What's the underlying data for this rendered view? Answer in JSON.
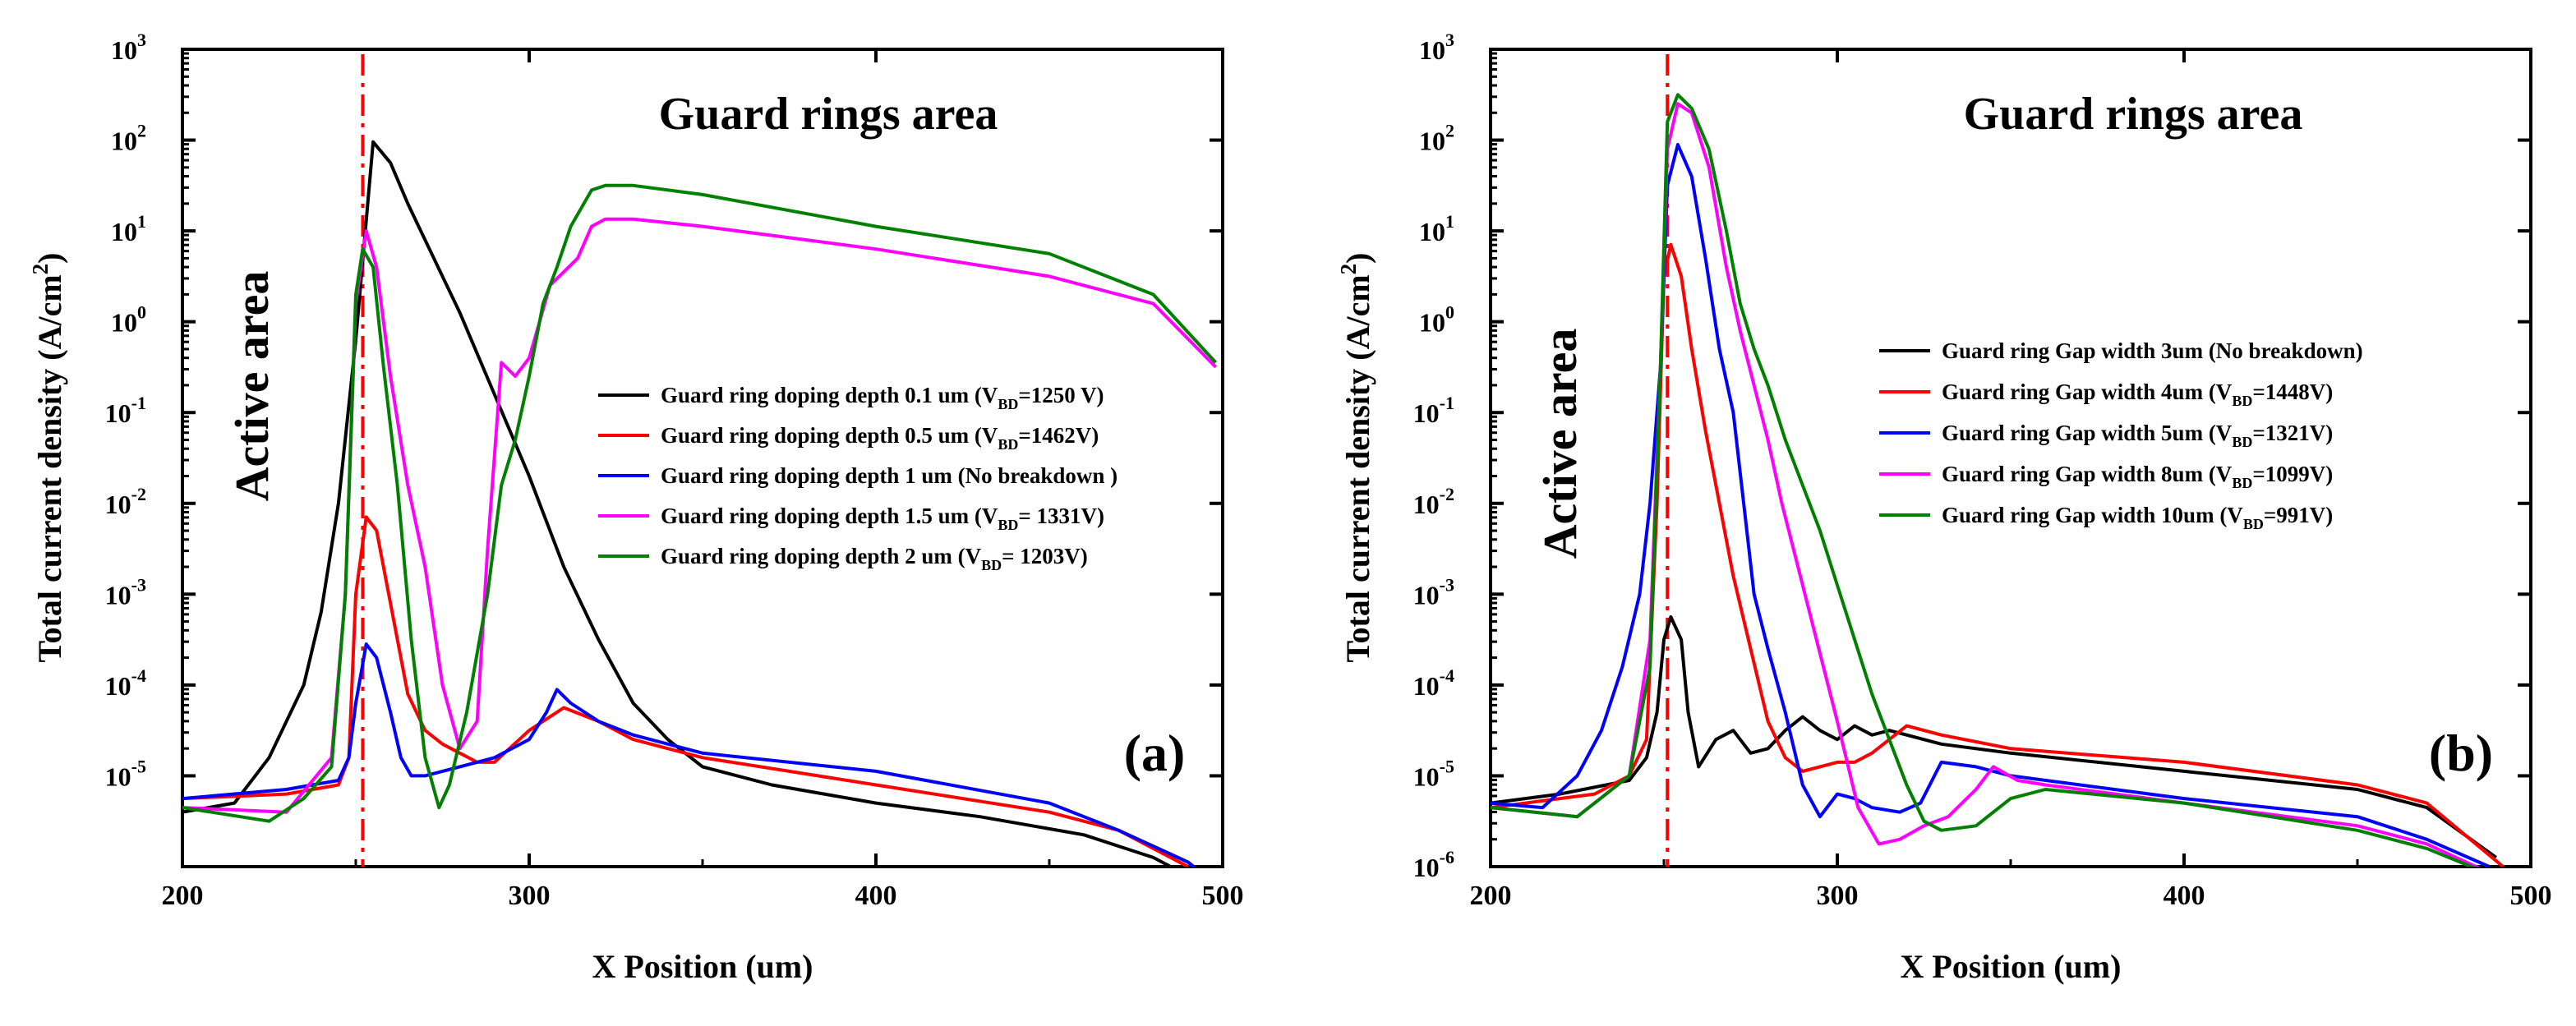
{
  "chart_data": [
    {
      "type": "line",
      "panel_label": "(a)",
      "title": "Guard rings area",
      "side_label": "Active area",
      "xlabel": "X Position (um)",
      "ylabel_main": "Total current density (A/cm",
      "ylabel_sup": "2",
      "ylabel_end": ")",
      "yscale": "log",
      "xlim": [
        200,
        500
      ],
      "ylim_log10": [
        -6,
        3
      ],
      "x_ticks": [
        200,
        300,
        400,
        500
      ],
      "y_tick_exponents": [
        -5,
        -4,
        -3,
        -2,
        -1,
        0,
        1,
        2,
        3
      ],
      "y_tick_base": "10",
      "x_ticks_text": [
        "200",
        "300",
        "400",
        "500"
      ],
      "y_ticks_text": [
        "-5",
        "-4",
        "-3",
        "-2",
        "-1",
        "0",
        "1",
        "2",
        "3"
      ],
      "marker_line_x": 252,
      "marker_line_color": "#ff0000",
      "series": [
        {
          "name": "Guard ring doping depth 0.1 um (V",
          "sub": "BD",
          "name_end": "=1250 V)",
          "color": "#000000",
          "x": [
            200,
            215,
            225,
            235,
            240,
            245,
            250,
            255,
            260,
            265,
            270,
            280,
            290,
            300,
            310,
            320,
            330,
            340,
            350,
            370,
            400,
            430,
            460,
            480,
            490
          ],
          "log10_y": [
            -5.4,
            -5.3,
            -4.8,
            -4.0,
            -3.2,
            -2.0,
            -0.2,
            1.98,
            1.75,
            1.3,
            0.9,
            0.1,
            -0.8,
            -1.7,
            -2.7,
            -3.5,
            -4.2,
            -4.6,
            -4.9,
            -5.1,
            -5.3,
            -5.45,
            -5.65,
            -5.9,
            -6.1
          ]
        },
        {
          "name": "Guard ring doping depth 0.5 um (V",
          "sub": "BD",
          "name_end": "=1462V)",
          "color": "#ff0000",
          "x": [
            200,
            230,
            245,
            248,
            250,
            253,
            256,
            260,
            265,
            270,
            275,
            280,
            285,
            290,
            300,
            310,
            320,
            330,
            350,
            400,
            450,
            470,
            490
          ],
          "log10_y": [
            -5.25,
            -5.2,
            -5.1,
            -4.8,
            -3.0,
            -2.15,
            -2.3,
            -3.1,
            -4.1,
            -4.5,
            -4.65,
            -4.75,
            -4.85,
            -4.85,
            -4.5,
            -4.25,
            -4.4,
            -4.6,
            -4.8,
            -5.1,
            -5.4,
            -5.6,
            -6.0
          ]
        },
        {
          "name": "Guard ring doping depth 1 um (No breakdown )",
          "sub": "",
          "name_end": "",
          "color": "#0000ff",
          "x": [
            200,
            230,
            245,
            248,
            250,
            253,
            256,
            260,
            263,
            266,
            270,
            280,
            290,
            300,
            305,
            308,
            312,
            320,
            330,
            350,
            400,
            450,
            470,
            490,
            495
          ],
          "log10_y": [
            -5.25,
            -5.15,
            -5.05,
            -4.8,
            -4.2,
            -3.55,
            -3.7,
            -4.3,
            -4.8,
            -5.0,
            -5.0,
            -4.9,
            -4.8,
            -4.6,
            -4.3,
            -4.05,
            -4.2,
            -4.4,
            -4.55,
            -4.75,
            -4.95,
            -5.3,
            -5.6,
            -5.95,
            -6.1
          ]
        },
        {
          "name": "Guard ring doping depth 1.5 um (V",
          "sub": "BD",
          "name_end": "= 1331V)",
          "color": "#ff00ff",
          "x": [
            200,
            230,
            243,
            247,
            250,
            253,
            256,
            260,
            265,
            270,
            275,
            280,
            285,
            288,
            292,
            296,
            300,
            303,
            306,
            310,
            314,
            318,
            322,
            330,
            350,
            400,
            450,
            480,
            498
          ],
          "log10_y": [
            -5.35,
            -5.4,
            -4.8,
            -3.0,
            0.2,
            1.0,
            0.6,
            -0.6,
            -1.8,
            -2.7,
            -4.0,
            -4.7,
            -4.4,
            -2.5,
            -0.45,
            -0.6,
            -0.4,
            0.0,
            0.4,
            0.55,
            0.7,
            1.05,
            1.13,
            1.13,
            1.05,
            0.8,
            0.5,
            0.2,
            -0.5
          ]
        },
        {
          "name": "Guard ring doping depth 2 um (V",
          "sub": "BD",
          "name_end": "= 1203V)",
          "color": "#008000",
          "x": [
            200,
            225,
            235,
            243,
            247,
            250,
            252,
            255,
            258,
            262,
            266,
            270,
            274,
            277,
            282,
            288,
            292,
            296,
            300,
            304,
            308,
            312,
            318,
            322,
            330,
            350,
            400,
            450,
            480,
            498
          ],
          "log10_y": [
            -5.35,
            -5.5,
            -5.25,
            -4.9,
            -3.0,
            0.3,
            0.8,
            0.6,
            -0.5,
            -1.8,
            -3.5,
            -4.8,
            -5.35,
            -5.1,
            -4.3,
            -3.0,
            -1.8,
            -1.3,
            -0.6,
            0.2,
            0.6,
            1.05,
            1.45,
            1.5,
            1.5,
            1.4,
            1.05,
            0.75,
            0.3,
            -0.45
          ]
        }
      ]
    },
    {
      "type": "line",
      "panel_label": "(b)",
      "title": "Guard rings area",
      "side_label": "Active area",
      "xlabel": "X Position (um)",
      "ylabel_main": "Total current density (A/cm",
      "ylabel_sup": "2",
      "ylabel_end": ")",
      "yscale": "log",
      "xlim": [
        200,
        500
      ],
      "ylim_log10": [
        -6,
        3
      ],
      "x_ticks": [
        200,
        300,
        400,
        500
      ],
      "y_tick_exponents": [
        -6,
        -5,
        -4,
        -3,
        -2,
        -1,
        0,
        1,
        2,
        3
      ],
      "y_tick_base": "10",
      "x_ticks_text": [
        "200",
        "300",
        "400",
        "500"
      ],
      "y_ticks_text": [
        "-6",
        "-5",
        "-4",
        "-3",
        "-2",
        "-1",
        "0",
        "1",
        "2",
        "3"
      ],
      "marker_line_x": 251,
      "marker_line_color": "#ff0000",
      "series": [
        {
          "name": "Guard ring Gap width 3um (No breakdown)",
          "sub": "",
          "name_end": "",
          "color": "#000000",
          "x": [
            200,
            220,
            240,
            245,
            248,
            250,
            252,
            255,
            257,
            260,
            265,
            270,
            275,
            280,
            285,
            290,
            295,
            300,
            305,
            310,
            315,
            320,
            330,
            350,
            400,
            450,
            470,
            490
          ],
          "log10_y": [
            -5.3,
            -5.2,
            -5.05,
            -4.8,
            -4.3,
            -3.5,
            -3.25,
            -3.5,
            -4.3,
            -4.9,
            -4.6,
            -4.5,
            -4.75,
            -4.7,
            -4.5,
            -4.35,
            -4.5,
            -4.6,
            -4.45,
            -4.55,
            -4.5,
            -4.55,
            -4.65,
            -4.75,
            -4.95,
            -5.15,
            -5.35,
            -5.9
          ]
        },
        {
          "name": "Guard ring Gap width 4um (V",
          "sub": "BD",
          "name_end": "=1448V)",
          "color": "#ff0000",
          "x": [
            200,
            230,
            240,
            245,
            248,
            250,
            252,
            255,
            258,
            262,
            266,
            270,
            275,
            280,
            285,
            290,
            295,
            300,
            305,
            310,
            315,
            320,
            330,
            350,
            400,
            450,
            470,
            492
          ],
          "log10_y": [
            -5.35,
            -5.2,
            -5.0,
            -4.6,
            -2.0,
            0.5,
            0.85,
            0.5,
            -0.3,
            -1.2,
            -2.0,
            -2.8,
            -3.6,
            -4.4,
            -4.8,
            -4.95,
            -4.9,
            -4.85,
            -4.85,
            -4.75,
            -4.6,
            -4.45,
            -4.55,
            -4.7,
            -4.85,
            -5.1,
            -5.3,
            -6.0
          ]
        },
        {
          "name": "Guard ring Gap width 5um (V",
          "sub": "BD",
          "name_end": "=1321V)",
          "color": "#0000ff",
          "x": [
            200,
            215,
            225,
            232,
            238,
            243,
            246,
            249,
            251,
            254,
            258,
            262,
            266,
            270,
            273,
            276,
            280,
            285,
            290,
            295,
            300,
            305,
            310,
            318,
            324,
            330,
            340,
            350,
            400,
            450,
            470,
            488
          ],
          "log10_y": [
            -5.3,
            -5.35,
            -5.0,
            -4.5,
            -3.8,
            -3.0,
            -2.0,
            -0.5,
            1.5,
            1.95,
            1.6,
            0.7,
            -0.3,
            -1.0,
            -2.0,
            -3.0,
            -3.6,
            -4.3,
            -5.1,
            -5.45,
            -5.2,
            -5.25,
            -5.35,
            -5.4,
            -5.3,
            -4.85,
            -4.9,
            -5.0,
            -5.25,
            -5.45,
            -5.7,
            -6.0
          ]
        },
        {
          "name": "Guard ring Gap width 8um (V",
          "sub": "BD",
          "name_end": "=1099V)",
          "color": "#ff00ff",
          "x": [
            200,
            225,
            240,
            246,
            249,
            251,
            254,
            258,
            263,
            268,
            272,
            276,
            280,
            284,
            288,
            292,
            296,
            300,
            306,
            312,
            318,
            325,
            332,
            340,
            345,
            352,
            360,
            400,
            450,
            470,
            487
          ],
          "log10_y": [
            -5.35,
            -5.45,
            -5.0,
            -3.5,
            -0.5,
            1.9,
            2.4,
            2.3,
            1.7,
            0.6,
            -0.1,
            -0.7,
            -1.3,
            -2.0,
            -2.6,
            -3.2,
            -3.8,
            -4.4,
            -5.35,
            -5.75,
            -5.7,
            -5.55,
            -5.45,
            -5.15,
            -4.9,
            -5.05,
            -5.1,
            -5.3,
            -5.55,
            -5.75,
            -6.05
          ]
        },
        {
          "name": "Guard ring Gap width 10um (V",
          "sub": "BD",
          "name_end": "=991V)",
          "color": "#008000",
          "x": [
            200,
            225,
            240,
            246,
            249,
            251,
            254,
            258,
            263,
            268,
            272,
            276,
            280,
            285,
            290,
            295,
            300,
            305,
            310,
            315,
            320,
            325,
            330,
            340,
            350,
            360,
            400,
            450,
            470,
            486
          ],
          "log10_y": [
            -5.35,
            -5.45,
            -5.0,
            -3.8,
            -0.5,
            2.2,
            2.5,
            2.35,
            1.9,
            1.0,
            0.2,
            -0.3,
            -0.7,
            -1.3,
            -1.8,
            -2.3,
            -2.9,
            -3.5,
            -4.1,
            -4.6,
            -5.1,
            -5.5,
            -5.6,
            -5.55,
            -5.25,
            -5.15,
            -5.3,
            -5.6,
            -5.8,
            -6.05
          ]
        }
      ]
    }
  ]
}
